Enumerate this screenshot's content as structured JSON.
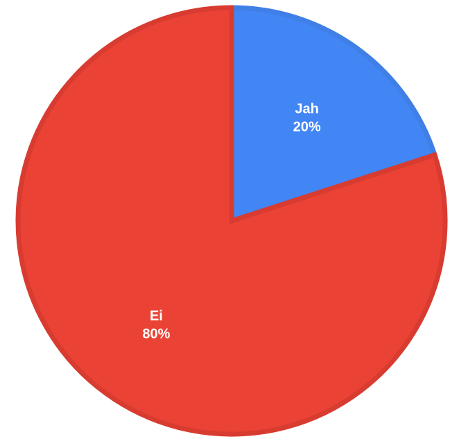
{
  "chart_data": {
    "type": "pie",
    "title": "",
    "start_angle_deg": 0,
    "direction": "clockwise",
    "slices": [
      {
        "label": "Jah",
        "value": 20,
        "display": "20%",
        "color": "#4285f4",
        "stroke": "#3f7fe6"
      },
      {
        "label": "Ei",
        "value": 80,
        "display": "80%",
        "color": "#ea4335",
        "stroke": "#d83b30"
      }
    ]
  }
}
